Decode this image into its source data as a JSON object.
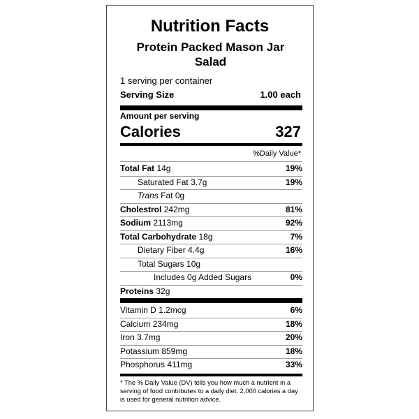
{
  "label": {
    "title": "Nutrition Facts",
    "product": "Protein Packed Mason Jar Salad",
    "servings": "1 serving per container",
    "serving_size_label": "Serving Size",
    "serving_size": "1.00 each",
    "amount_per_serving": "Amount per serving",
    "calories_label": "Calories",
    "calories": 327,
    "dv_header": "%Daily Value*",
    "nutrients": [
      {
        "name": "Total Fat",
        "amount": "14g",
        "dv": "19%"
      },
      {
        "name": "Saturated Fat",
        "amount": "3.7g",
        "dv": "19%"
      },
      {
        "name_italic": "Trans",
        "name": "Fat",
        "amount": "0g"
      },
      {
        "name": "Cholestrol",
        "amount": "242mg",
        "dv": "81%"
      },
      {
        "name": "Sodium",
        "amount": "2113mg",
        "dv": "92%"
      },
      {
        "name": "Total Carbohydrate",
        "amount": "18g",
        "dv": "7%"
      },
      {
        "name": "Dietary Fiber",
        "amount": "4.4g",
        "dv": "16%"
      },
      {
        "name": "Total Sugars",
        "amount": "10g"
      },
      {
        "name": "Includes 0g Added Sugars",
        "dv": "0%"
      },
      {
        "name": "Proteins",
        "amount": "32g"
      }
    ],
    "vitamins": [
      {
        "name": "Vitamin D",
        "amount": "1.2mcg",
        "dv": "6%"
      },
      {
        "name": "Calcium",
        "amount": "234mg",
        "dv": "18%"
      },
      {
        "name": "Iron",
        "amount": "3.7mg",
        "dv": "20%"
      },
      {
        "name": "Potassium",
        "amount": "859mg",
        "dv": "18%"
      },
      {
        "name": "Phosphorus",
        "amount": "411mg",
        "dv": "33%"
      }
    ],
    "footnote": "* The % Daily Value (DV) tells you how much a nutrient in a serving of food contributes to a daily diet. 2,000 calories a day is used for general nutrition advice."
  }
}
